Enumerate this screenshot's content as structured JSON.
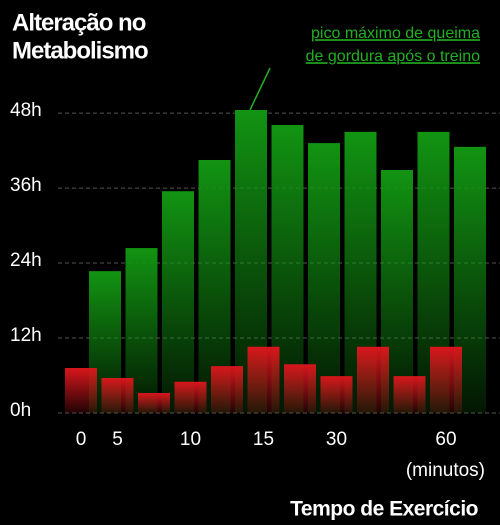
{
  "chart_data": {
    "type": "bar",
    "title": [
      "Alteração no",
      "Metabolismo"
    ],
    "annotation": [
      "pico máximo de queima",
      "de gordura após o treino"
    ],
    "x_label": "Tempo de Exercício",
    "x_unit": "(minutos)",
    "categories": [
      "0",
      "5",
      null,
      "10",
      null,
      "15",
      null,
      "30",
      null,
      null,
      "60"
    ],
    "series": [
      {
        "color": "#129412",
        "values": [
          22.7,
          26.4,
          35.5,
          40.5,
          48.5,
          46.1,
          43.2,
          45.0,
          38.9,
          45.0,
          42.6
        ]
      },
      {
        "color": "#d8161c",
        "values": [
          7.2,
          5.6,
          3.2,
          5.0,
          7.5,
          10.6,
          7.8,
          5.9,
          10.6,
          5.9,
          10.6
        ]
      }
    ],
    "ylim": [
      0,
      48.5
    ],
    "yticks": [
      {
        "value": 0,
        "label": "0h"
      },
      {
        "value": 12,
        "label": "12h"
      },
      {
        "value": 24,
        "label": "24h"
      },
      {
        "value": 36,
        "label": "36h"
      },
      {
        "value": 48,
        "label": "48h"
      }
    ],
    "grid": true
  }
}
